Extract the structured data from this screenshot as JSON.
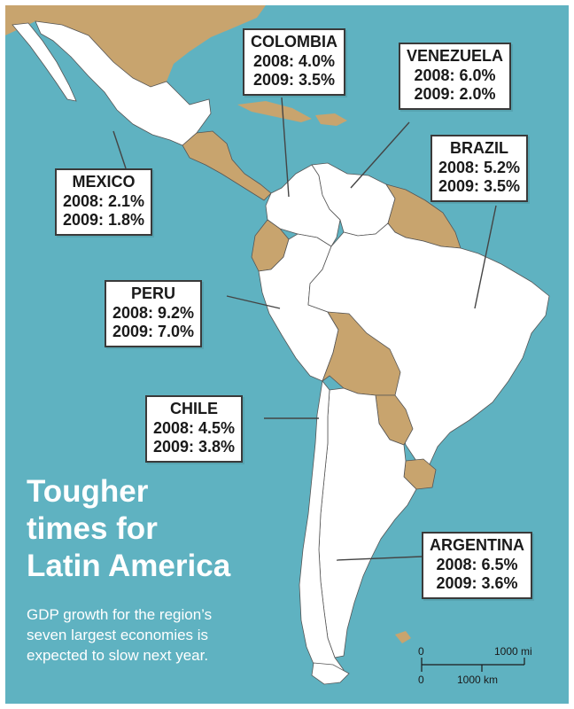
{
  "colors": {
    "ocean": "#5fb2c1",
    "land_highlight": "#ffffff",
    "land_other": "#c8a46e",
    "border": "#555555"
  },
  "title_lines": [
    "Tougher",
    "times for",
    "Latin America"
  ],
  "subtitle_lines": [
    "GDP growth for the region’s",
    "seven largest economies is",
    "expected to slow next year."
  ],
  "countries": [
    {
      "id": "colombia",
      "name": "COLOMBIA",
      "y2008": "2008: 4.0%",
      "y2009": "2009: 3.5%"
    },
    {
      "id": "venezuela",
      "name": "VENEZUELA",
      "y2008": "2008: 6.0%",
      "y2009": "2009: 2.0%"
    },
    {
      "id": "brazil",
      "name": "BRAZIL",
      "y2008": "2008: 5.2%",
      "y2009": "2009: 3.5%"
    },
    {
      "id": "mexico",
      "name": "MEXICO",
      "y2008": "2008: 2.1%",
      "y2009": "2009: 1.8%"
    },
    {
      "id": "peru",
      "name": "PERU",
      "y2008": "2008: 9.2%",
      "y2009": "2009: 7.0%"
    },
    {
      "id": "chile",
      "name": "CHILE",
      "y2008": "2008: 4.5%",
      "y2009": "2009: 3.8%"
    },
    {
      "id": "argentina",
      "name": "ARGENTINA",
      "y2008": "2008: 6.5%",
      "y2009": "2009: 3.6%"
    }
  ],
  "scale_bar": {
    "mi_zero": "0",
    "mi_label": "1000 mi",
    "km_zero": "0",
    "km_label": "1000 km"
  }
}
